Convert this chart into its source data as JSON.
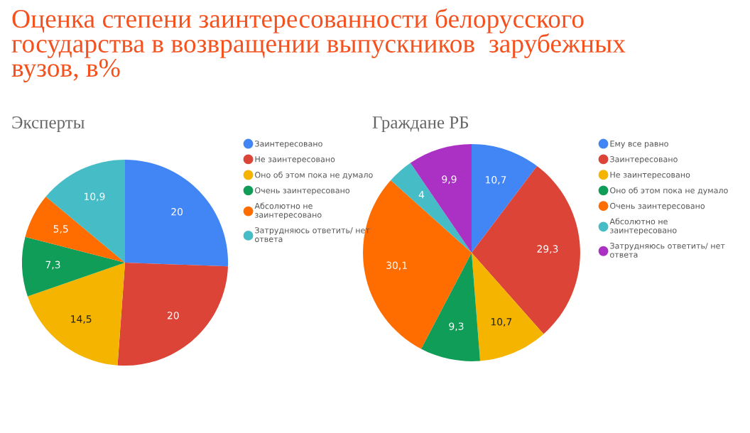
{
  "chart_data": [
    {
      "type": "pie",
      "title": "Оценка степени заинтересованности белорусского\nгосударства в возвращении выпускников  зарубежных\nвузов, в%",
      "subtitle": "Эксперты",
      "legend": "right",
      "categories": [
        "Заинтересовано",
        "Не заинтересовано",
        "Оно об этом пока не думало",
        "Очень заинтересовано",
        "Абсолютно не заинтересовано",
        "Затрудняюсь ответить/ нет ответа"
      ],
      "values": [
        20,
        20,
        14.5,
        7.3,
        5.5,
        10.9
      ],
      "value_labels": [
        "20",
        "20",
        "14,5",
        "7,3",
        "5,5",
        "10,9"
      ],
      "colors": [
        "#4285f4",
        "#db4437",
        "#f4b400",
        "#0f9d58",
        "#ff6d00",
        "#46bdc6"
      ]
    },
    {
      "type": "pie",
      "title": "Граждане РБ",
      "legend": "right",
      "categories": [
        "Ему все равно",
        "Заинтересовано",
        "Не заинтересовано",
        "Оно об этом пока не думало",
        "Очень заинтересовано",
        "Абсолютно не заинтересовано",
        "Затрудняюсь ответить/ нет ответа"
      ],
      "values": [
        10.7,
        29.3,
        10.7,
        9.3,
        30.1,
        4,
        9.9
      ],
      "value_labels": [
        "10,7",
        "29,3",
        "10,7",
        "9,3",
        "30,1",
        "4",
        "9,9"
      ],
      "colors": [
        "#4285f4",
        "#db4437",
        "#f4b400",
        "#0f9d58",
        "#ff6d00",
        "#46bdc6",
        "#ab30c4"
      ]
    }
  ]
}
